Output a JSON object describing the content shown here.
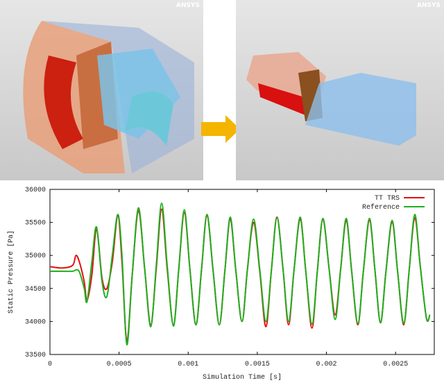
{
  "images": [
    {
      "logo": "ANSYS"
    },
    {
      "logo": "ANSYS"
    }
  ],
  "chart_data": {
    "type": "line",
    "x_label": "Simulation Time [s]",
    "y_label": "Static Pressure [Pa]",
    "xlim": [
      0,
      0.00278
    ],
    "ylim": [
      33500,
      36000
    ],
    "xticks": [
      0,
      0.0005,
      0.001,
      0.0015,
      0.002,
      0.0025
    ],
    "yticks": [
      33500,
      34000,
      34500,
      35000,
      35500,
      36000
    ],
    "legend": "upper-right",
    "x": [
      0,
      8.9e-05,
      0.000164,
      0.000188,
      0.000213,
      0.000248,
      0.000268,
      0.000303,
      0.000337,
      0.000377,
      0.000412,
      0.000451,
      0.000491,
      0.000521,
      0.000556,
      0.000595,
      0.00064,
      0.000685,
      0.000729,
      0.000769,
      0.000808,
      0.000848,
      0.000893,
      0.000932,
      0.000972,
      0.001012,
      0.001056,
      0.001096,
      0.001136,
      0.00118,
      0.001225,
      0.001265,
      0.001304,
      0.001344,
      0.001389,
      0.001428,
      0.001473,
      0.001518,
      0.001562,
      0.001602,
      0.001642,
      0.001686,
      0.001726,
      0.001766,
      0.00181,
      0.00185,
      0.001895,
      0.001934,
      0.001974,
      0.002019,
      0.002063,
      0.002103,
      0.002143,
      0.002182,
      0.002227,
      0.002267,
      0.002311,
      0.002351,
      0.002391,
      0.00243,
      0.002475,
      0.002515,
      0.002559,
      0.002599,
      0.002639,
      0.002678,
      0.002723,
      0.002748
    ],
    "series": [
      {
        "name": "TT TRS",
        "color": "#e01010",
        "values": [
          34830,
          34810,
          34850,
          35000,
          34900,
          34600,
          34320,
          34700,
          35400,
          34650,
          34500,
          34900,
          35600,
          34900,
          33700,
          34700,
          35680,
          34800,
          33950,
          34800,
          35700,
          34800,
          33950,
          34800,
          35650,
          34800,
          33950,
          34780,
          35600,
          34770,
          33950,
          34760,
          35550,
          34780,
          34000,
          34780,
          35500,
          34750,
          33920,
          34780,
          35580,
          34790,
          33950,
          34790,
          35550,
          34770,
          33900,
          34760,
          35550,
          34800,
          34100,
          34800,
          35530,
          34770,
          33950,
          34760,
          35530,
          34770,
          33980,
          34750,
          35500,
          34750,
          33950,
          34790,
          35570,
          34850,
          34050,
          34100
        ]
      },
      {
        "name": "Reference",
        "color": "#20b020",
        "values": [
          34760,
          34760,
          34760,
          34780,
          34750,
          34500,
          34300,
          34900,
          35430,
          34600,
          34380,
          35000,
          35620,
          35000,
          33650,
          34700,
          35720,
          34800,
          33920,
          34850,
          35790,
          34850,
          33930,
          34800,
          35690,
          34800,
          33950,
          34780,
          35620,
          34770,
          33950,
          34760,
          35580,
          34780,
          34000,
          34780,
          35550,
          34780,
          34000,
          34780,
          35570,
          34790,
          34000,
          34790,
          35580,
          34770,
          33960,
          34760,
          35560,
          34800,
          34030,
          34800,
          35560,
          34770,
          33970,
          34760,
          35560,
          34770,
          33980,
          34750,
          35530,
          34750,
          33970,
          34790,
          35620,
          34850,
          34050,
          34100
        ]
      }
    ]
  }
}
